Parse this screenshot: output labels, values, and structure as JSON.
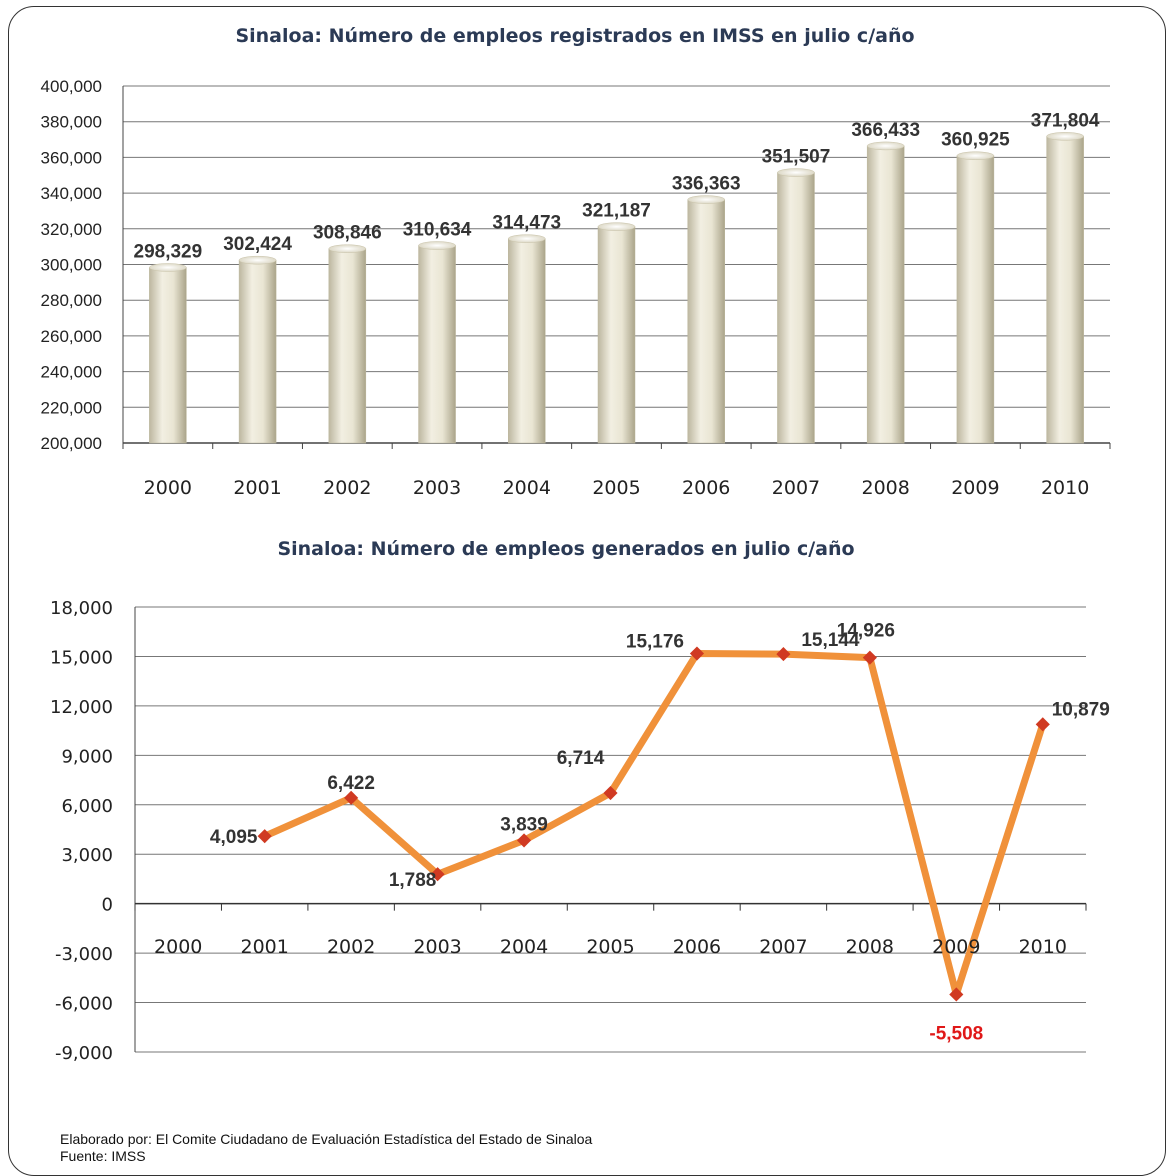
{
  "chart_data": [
    {
      "type": "bar",
      "title": "Sinaloa:  Número de empleos registrados en IMSS en julio  c/año",
      "categories": [
        "2000",
        "2001",
        "2002",
        "2003",
        "2004",
        "2005",
        "2006",
        "2007",
        "2008",
        "2009",
        "2010"
      ],
      "values": [
        298329,
        302424,
        308846,
        310634,
        314473,
        321187,
        336363,
        351507,
        366433,
        360925,
        371804
      ],
      "value_labels": [
        "298,329",
        "302,424",
        "308,846",
        "310,634",
        "314,473",
        "321,187",
        "336,363",
        "351,507",
        "366,433",
        "360,925",
        "371,804"
      ],
      "ylim": [
        200000,
        400000
      ],
      "yticks": [
        "200,000",
        "220,000",
        "240,000",
        "260,000",
        "280,000",
        "300,000",
        "320,000",
        "340,000",
        "360,000",
        "380,000",
        "400,000"
      ],
      "grid": true,
      "colors": {
        "bar": "#e3dfcb",
        "bar_edge": "#bdb79d",
        "grid": "#777777"
      }
    },
    {
      "type": "line",
      "title": "Sinaloa: Número de empleos  generados en julio  c/año",
      "categories": [
        "2000",
        "2001",
        "2002",
        "2003",
        "2004",
        "2005",
        "2006",
        "2007",
        "2008",
        "2009",
        "2010"
      ],
      "x": [
        "2001",
        "2002",
        "2003",
        "2004",
        "2005",
        "2006",
        "2007",
        "2008",
        "2009",
        "2010"
      ],
      "values": [
        4095,
        6422,
        1788,
        3839,
        6714,
        15176,
        15144,
        14926,
        -5508,
        10879
      ],
      "value_labels": [
        "4,095",
        "6,422",
        "1,788",
        "3,839",
        "6,714",
        "15,176",
        "15,144",
        "14,926",
        "-5,508",
        "10,879"
      ],
      "ylim": [
        -9000,
        18000
      ],
      "yticks": [
        "-9,000",
        "-6,000",
        "-3,000",
        "0",
        "3,000",
        "6,000",
        "9,000",
        "12,000",
        "15,000",
        "18,000"
      ],
      "grid": true,
      "colors": {
        "line": "#f0913a",
        "marker": "#d03a22",
        "negative_label": "#e01818",
        "grid": "#777777"
      }
    }
  ],
  "footer": {
    "line1": "Elaborado por:  El Comite Ciudadano de Evaluación Estadística del Estado de Sinaloa",
    "line2": "Fuente: IMSS"
  }
}
